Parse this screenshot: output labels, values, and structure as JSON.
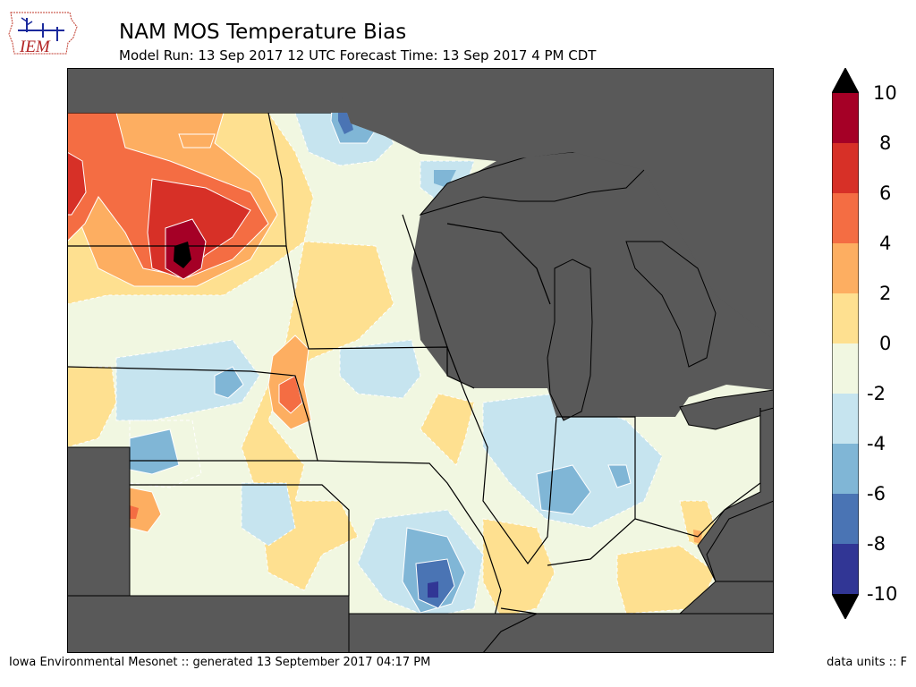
{
  "logo": {
    "text": "IEM"
  },
  "header": {
    "title": "NAM MOS Temperature Bias",
    "subtitle": "Model Run: 13 Sep 2017 12 UTC Forecast Time: 13 Sep 2017 4 PM CDT"
  },
  "colorbar": {
    "levels": [
      "10",
      "8",
      "6",
      "4",
      "2",
      "0",
      "-2",
      "-4",
      "-6",
      "-8",
      "-10"
    ],
    "colors": [
      "#000000",
      "#a50026",
      "#d73027",
      "#f46d43",
      "#fdae61",
      "#fee090",
      "#f1f7e1",
      "#c6e4ef",
      "#80b6d6",
      "#4a74b4",
      "#313695"
    ]
  },
  "footer": {
    "source": "Iowa Environmental Mesonet :: generated 13 September 2017 04:17 PM",
    "units": "data units :: F"
  }
}
